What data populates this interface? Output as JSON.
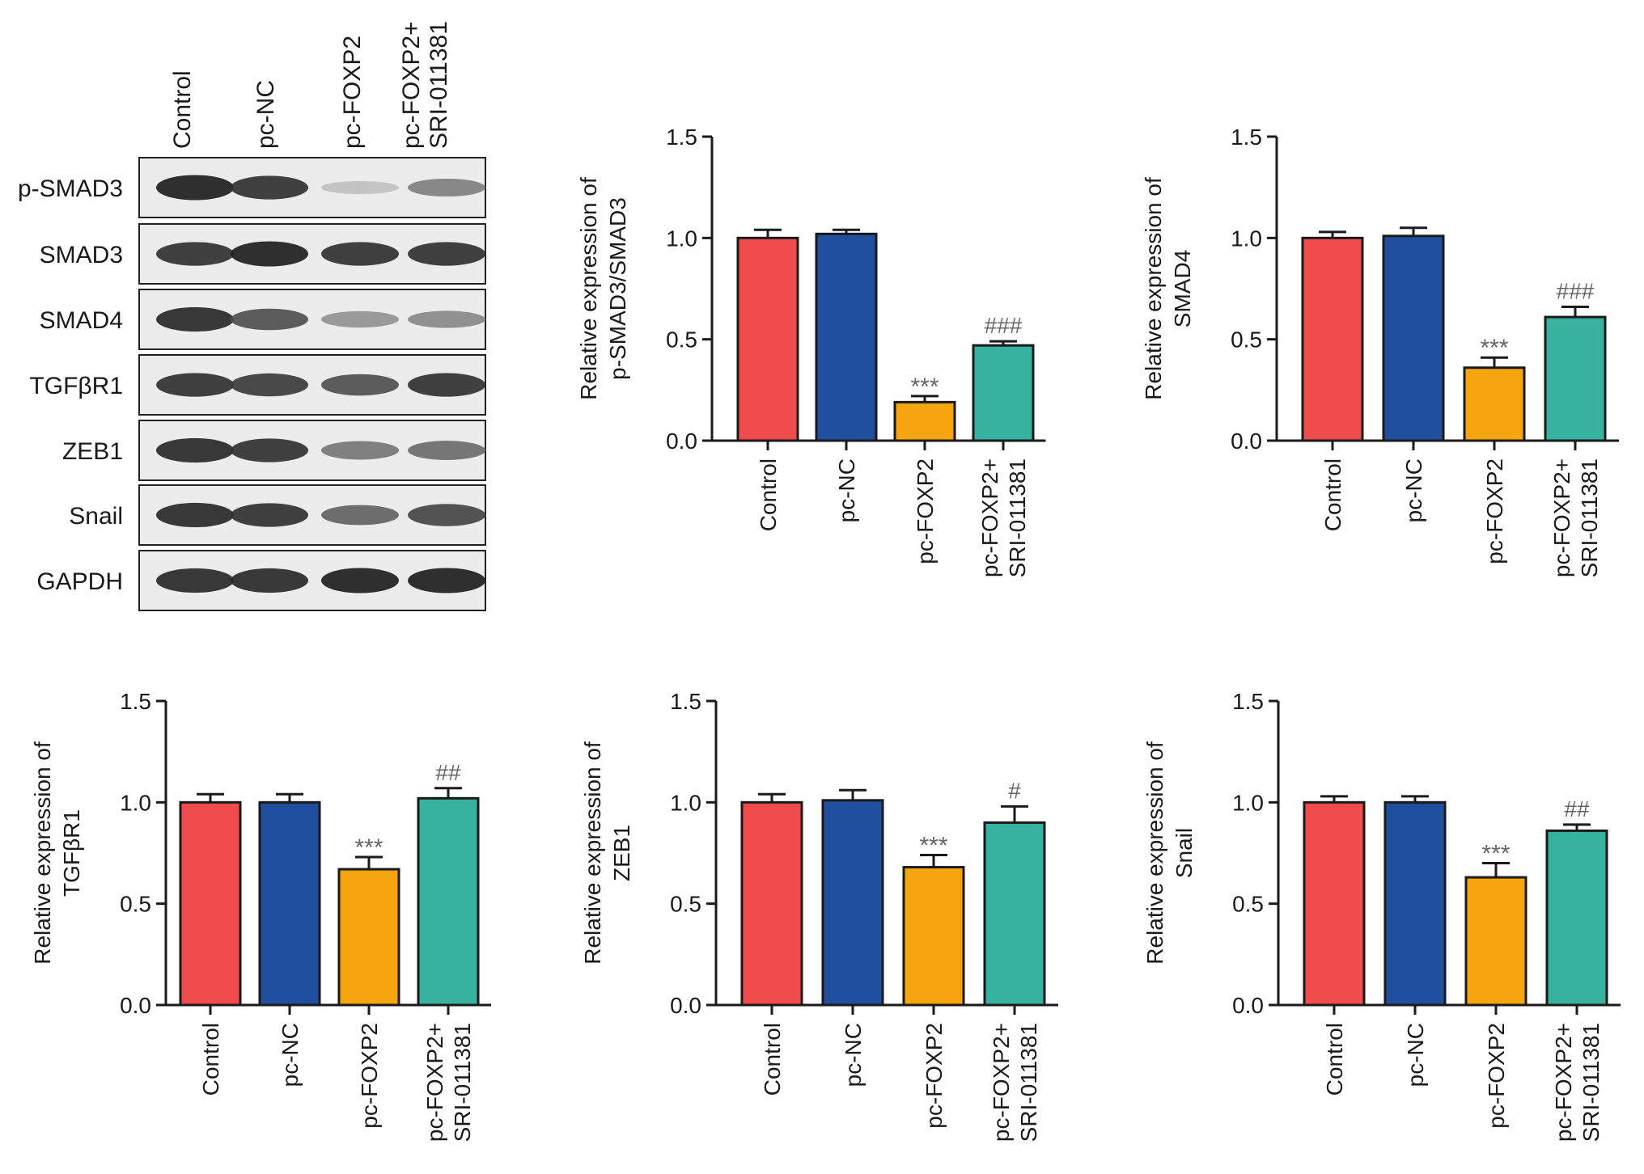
{
  "colors": {
    "control": "#f04c4e",
    "pc_nc": "#214fa0",
    "pc_foxp2": "#f7a50f",
    "pc_foxp2_sri": "#37b2a0",
    "axis": "#1a1a1a",
    "star_mark": "#666666"
  },
  "western_blot": {
    "lanes": [
      {
        "lines": [
          "Control"
        ]
      },
      {
        "lines": [
          "pc-NC"
        ]
      },
      {
        "lines": [
          "pc-FOXP2"
        ]
      },
      {
        "lines": [
          "pc-FOXP2+",
          "SRI-011381"
        ]
      }
    ],
    "proteins": [
      {
        "label": "p-SMAD3",
        "intensity": [
          0.95,
          0.85,
          0.12,
          0.45
        ]
      },
      {
        "label": "SMAD3",
        "intensity": [
          0.85,
          0.95,
          0.85,
          0.85
        ]
      },
      {
        "label": "SMAD4",
        "intensity": [
          0.9,
          0.7,
          0.35,
          0.4
        ]
      },
      {
        "label": "TGFβR1",
        "intensity": [
          0.85,
          0.8,
          0.7,
          0.85
        ]
      },
      {
        "label": "ZEB1",
        "intensity": [
          0.9,
          0.85,
          0.5,
          0.55
        ]
      },
      {
        "label": "Snail",
        "intensity": [
          0.9,
          0.85,
          0.6,
          0.75
        ]
      },
      {
        "label": "GAPDH",
        "intensity": [
          0.9,
          0.9,
          0.95,
          0.95
        ]
      }
    ]
  },
  "chart_data": [
    {
      "type": "bar",
      "ylabel_lines": [
        "Relative expression of",
        "p-SMAD3/SMAD3"
      ],
      "categories": [
        [
          "Control"
        ],
        [
          "pc-NC"
        ],
        [
          "pc-FOXP2"
        ],
        [
          "pc-FOXP2+",
          "SRI-011381"
        ]
      ],
      "values": [
        1.0,
        1.02,
        0.19,
        0.47
      ],
      "errors": [
        0.04,
        0.02,
        0.03,
        0.02
      ],
      "annotations": [
        "",
        "",
        "***",
        "###"
      ],
      "ylim": [
        0,
        1.5
      ],
      "yticks": [
        "0.0",
        "0.5",
        "1.0",
        "1.5"
      ]
    },
    {
      "type": "bar",
      "ylabel_lines": [
        "Relative expression of",
        "SMAD4"
      ],
      "categories": [
        [
          "Control"
        ],
        [
          "pc-NC"
        ],
        [
          "pc-FOXP2"
        ],
        [
          "pc-FOXP2+",
          "SRI-011381"
        ]
      ],
      "values": [
        1.0,
        1.01,
        0.36,
        0.61
      ],
      "errors": [
        0.03,
        0.04,
        0.05,
        0.05
      ],
      "annotations": [
        "",
        "",
        "***",
        "###"
      ],
      "ylim": [
        0,
        1.5
      ],
      "yticks": [
        "0.0",
        "0.5",
        "1.0",
        "1.5"
      ]
    },
    {
      "type": "bar",
      "ylabel_lines": [
        "Relative expression of",
        "TGFβR1"
      ],
      "categories": [
        [
          "Control"
        ],
        [
          "pc-NC"
        ],
        [
          "pc-FOXP2"
        ],
        [
          "pc-FOXP2+",
          "SRI-011381"
        ]
      ],
      "values": [
        1.0,
        1.0,
        0.67,
        1.02
      ],
      "errors": [
        0.04,
        0.04,
        0.06,
        0.05
      ],
      "annotations": [
        "",
        "",
        "***",
        "##"
      ],
      "ylim": [
        0,
        1.5
      ],
      "yticks": [
        "0.0",
        "0.5",
        "1.0",
        "1.5"
      ]
    },
    {
      "type": "bar",
      "ylabel_lines": [
        "Relative expression of",
        "ZEB1"
      ],
      "categories": [
        [
          "Control"
        ],
        [
          "pc-NC"
        ],
        [
          "pc-FOXP2"
        ],
        [
          "pc-FOXP2+",
          "SRI-011381"
        ]
      ],
      "values": [
        1.0,
        1.01,
        0.68,
        0.9
      ],
      "errors": [
        0.04,
        0.05,
        0.06,
        0.08
      ],
      "annotations": [
        "",
        "",
        "***",
        "#"
      ],
      "ylim": [
        0,
        1.5
      ],
      "yticks": [
        "0.0",
        "0.5",
        "1.0",
        "1.5"
      ]
    },
    {
      "type": "bar",
      "ylabel_lines": [
        "Relative expression of",
        "Snail"
      ],
      "categories": [
        [
          "Control"
        ],
        [
          "pc-NC"
        ],
        [
          "pc-FOXP2"
        ],
        [
          "pc-FOXP2+",
          "SRI-011381"
        ]
      ],
      "values": [
        1.0,
        1.0,
        0.63,
        0.86
      ],
      "errors": [
        0.03,
        0.03,
        0.07,
        0.03
      ],
      "annotations": [
        "",
        "",
        "***",
        "##"
      ],
      "ylim": [
        0,
        1.5
      ],
      "yticks": [
        "0.0",
        "0.5",
        "1.0",
        "1.5"
      ]
    }
  ]
}
